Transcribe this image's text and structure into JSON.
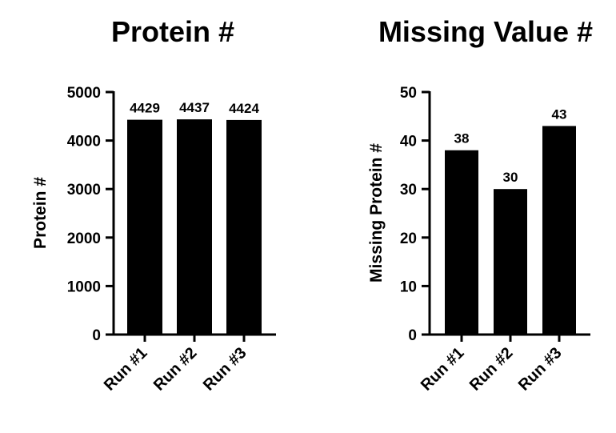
{
  "chart_data": [
    {
      "type": "bar",
      "title": "Protein #",
      "xlabel": "",
      "ylabel": "Protein #",
      "categories": [
        "Run #1",
        "Run #2",
        "Run #3"
      ],
      "values": [
        4429,
        4437,
        4424
      ],
      "ylim": [
        0,
        5000
      ],
      "yticks": [
        0,
        1000,
        2000,
        3000,
        4000,
        5000
      ],
      "data_labels": [
        "4429",
        "4437",
        "4424"
      ],
      "grid": false,
      "bar_color": "#000000"
    },
    {
      "type": "bar",
      "title": "Missing Value #",
      "xlabel": "",
      "ylabel": "Missing  Protein #",
      "categories": [
        "Run #1",
        "Run #2",
        "Run #3"
      ],
      "values": [
        38,
        30,
        43
      ],
      "ylim": [
        0,
        50
      ],
      "yticks": [
        0,
        10,
        20,
        30,
        40,
        50
      ],
      "data_labels": [
        "38",
        "30",
        "43"
      ],
      "grid": false,
      "bar_color": "#000000"
    }
  ]
}
